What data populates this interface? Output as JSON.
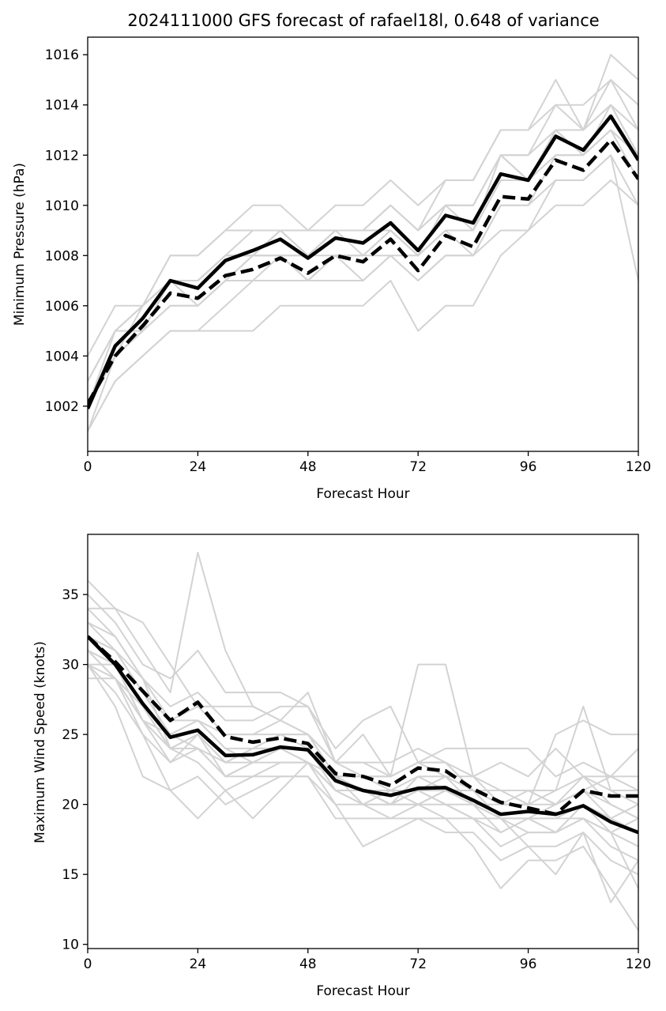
{
  "title": "2024111000 GFS forecast of rafael18l, 0.648 of variance",
  "chart_data": [
    {
      "type": "line",
      "xlabel": "Forecast Hour",
      "ylabel": "Minimum Pressure (hPa)",
      "xlim": [
        0,
        120
      ],
      "ylim": [
        1000.2,
        1016.7
      ],
      "xticks": [
        0,
        24,
        48,
        72,
        96,
        120
      ],
      "yticks": [
        1002,
        1004,
        1006,
        1008,
        1010,
        1012,
        1014,
        1016
      ],
      "x": [
        0,
        6,
        12,
        18,
        24,
        30,
        36,
        42,
        48,
        54,
        60,
        66,
        72,
        78,
        84,
        90,
        96,
        102,
        108,
        114,
        120
      ],
      "series": [
        {
          "style": "solid",
          "values": [
            1001.9,
            1004.4,
            1005.5,
            1007.0,
            1006.7,
            1007.8,
            1008.2,
            1008.65,
            1007.9,
            1008.7,
            1008.5,
            1009.3,
            1008.2,
            1009.6,
            1009.3,
            1011.25,
            1011.0,
            1012.75,
            1012.2,
            1013.55,
            1011.8
          ]
        },
        {
          "style": "dashed",
          "values": [
            1002.1,
            1004.0,
            1005.2,
            1006.5,
            1006.3,
            1007.2,
            1007.45,
            1007.9,
            1007.3,
            1008.0,
            1007.75,
            1008.65,
            1007.4,
            1008.8,
            1008.35,
            1010.35,
            1010.25,
            1011.8,
            1011.4,
            1012.6,
            1011.05
          ]
        }
      ],
      "members": [
        [
          1002,
          1004,
          1006,
          1007,
          1007,
          1008,
          1008,
          1009,
          1008,
          1009,
          1009,
          1009,
          1008,
          1010,
          1010,
          1012,
          1011,
          1013,
          1013,
          1014,
          1012
        ],
        [
          1001,
          1004,
          1005,
          1007,
          1007,
          1008,
          1009,
          1009,
          1008,
          1009,
          1008,
          1009,
          1008,
          1009,
          1009,
          1011,
          1011,
          1013,
          1012,
          1013,
          1012
        ],
        [
          1003,
          1005,
          1006,
          1007,
          1007,
          1008,
          1008,
          1009,
          1008,
          1009,
          1009,
          1010,
          1009,
          1010,
          1010,
          1012,
          1012,
          1013,
          1013,
          1014,
          1013
        ],
        [
          1001,
          1003,
          1004,
          1005,
          1005,
          1006,
          1007,
          1007,
          1007,
          1007,
          1007,
          1008,
          1007,
          1008,
          1008,
          1010,
          1010,
          1012,
          1012,
          1013,
          1012
        ],
        [
          1004,
          1006,
          1006,
          1008,
          1008,
          1009,
          1010,
          1010,
          1009,
          1010,
          1010,
          1011,
          1010,
          1011,
          1011,
          1013,
          1013,
          1015,
          1013,
          1016,
          1015
        ],
        [
          1003,
          1005,
          1005,
          1006,
          1006,
          1007,
          1008,
          1008,
          1007,
          1008,
          1008,
          1009,
          1008,
          1009,
          1009,
          1011,
          1011,
          1012,
          1012,
          1013,
          1011
        ],
        [
          1001,
          1003,
          1004,
          1005,
          1005,
          1005,
          1005,
          1006,
          1006,
          1006,
          1006,
          1007,
          1005,
          1006,
          1006,
          1008,
          1009,
          1010,
          1010,
          1011,
          1010
        ],
        [
          1002,
          1004,
          1005,
          1006,
          1006,
          1007,
          1007,
          1008,
          1007,
          1008,
          1008,
          1008,
          1007,
          1008,
          1008,
          1009,
          1009,
          1011,
          1011,
          1012,
          1007
        ],
        [
          1002,
          1005,
          1006,
          1008,
          1008,
          1009,
          1009,
          1009,
          1009,
          1009,
          1009,
          1010,
          1009,
          1010,
          1010,
          1012,
          1012,
          1014,
          1013,
          1015,
          1014
        ],
        [
          1002,
          1004,
          1005,
          1007,
          1006,
          1007,
          1008,
          1008,
          1008,
          1008,
          1007,
          1008,
          1008,
          1009,
          1008,
          1010,
          1010,
          1011,
          1011,
          1012,
          1010
        ],
        [
          1003,
          1005,
          1006,
          1007,
          1007,
          1008,
          1008,
          1009,
          1008,
          1009,
          1009,
          1010,
          1009,
          1011,
          1011,
          1013,
          1013,
          1014,
          1014,
          1015,
          1013
        ],
        [
          1002,
          1004,
          1005,
          1007,
          1007,
          1008,
          1008,
          1008,
          1008,
          1009,
          1009,
          1009,
          1008,
          1010,
          1009,
          1012,
          1011,
          1013,
          1012,
          1014,
          1012
        ]
      ]
    },
    {
      "type": "line",
      "xlabel": "Forecast Hour",
      "ylabel": "Maximum Wind Speed (knots)",
      "xlim": [
        0,
        120
      ],
      "ylim": [
        9.7,
        39.3
      ],
      "xticks": [
        0,
        24,
        48,
        72,
        96,
        120
      ],
      "yticks": [
        10,
        15,
        20,
        25,
        30,
        35
      ],
      "x": [
        0,
        6,
        12,
        18,
        24,
        30,
        36,
        42,
        48,
        54,
        60,
        66,
        72,
        78,
        84,
        90,
        96,
        102,
        108,
        114,
        120
      ],
      "series": [
        {
          "style": "solid",
          "values": [
            32.0,
            30.0,
            27.2,
            24.8,
            25.3,
            23.5,
            23.55,
            24.1,
            23.9,
            21.7,
            21.0,
            20.65,
            21.15,
            21.2,
            20.3,
            19.3,
            19.5,
            19.3,
            19.9,
            18.75,
            18.0
          ]
        },
        {
          "style": "dashed",
          "values": [
            32.0,
            30.2,
            28.1,
            26.0,
            27.3,
            24.85,
            24.45,
            24.75,
            24.35,
            22.2,
            22.0,
            21.35,
            22.6,
            22.4,
            21.1,
            20.15,
            19.75,
            19.3,
            21.0,
            20.6,
            20.6
          ]
        }
      ],
      "members": [
        [
          36,
          34,
          31,
          28,
          38,
          31,
          27,
          26,
          25,
          22,
          21,
          21,
          21,
          20,
          19,
          18,
          19,
          20,
          21,
          20,
          19
        ],
        [
          35,
          33,
          30,
          29,
          31,
          28,
          28,
          28,
          27,
          24,
          26,
          27,
          23,
          24,
          24,
          24,
          24,
          22,
          23,
          22,
          21
        ],
        [
          34,
          34,
          33,
          30,
          27,
          27,
          27,
          26,
          28,
          23,
          25,
          22,
          30,
          30,
          22,
          20,
          20,
          25,
          26,
          25,
          25
        ],
        [
          33,
          32,
          29,
          27,
          28,
          26,
          26,
          27,
          27,
          23,
          22,
          21,
          22,
          22,
          22,
          23,
          22,
          24,
          22,
          22,
          24
        ],
        [
          32,
          30,
          26,
          23,
          25,
          23,
          24,
          24,
          24,
          21,
          21,
          20,
          21,
          22,
          20,
          19,
          19,
          18,
          20,
          18,
          17
        ],
        [
          31,
          29,
          26,
          25,
          26,
          24,
          23,
          24,
          24,
          22,
          21,
          20,
          22,
          21,
          20,
          20,
          21,
          20,
          21,
          19,
          20
        ],
        [
          30,
          28,
          25,
          23,
          24,
          22,
          22,
          23,
          23,
          21,
          20,
          20,
          20,
          21,
          21,
          19,
          18,
          18,
          19,
          17,
          16
        ],
        [
          30,
          27,
          22,
          21,
          22,
          20,
          21,
          22,
          22,
          19,
          19,
          19,
          19,
          18,
          18,
          16,
          17,
          15,
          18,
          16,
          15
        ],
        [
          29,
          29,
          25,
          21,
          19,
          21,
          19,
          21,
          23,
          20,
          17,
          18,
          19,
          19,
          17,
          14,
          16,
          16,
          17,
          14,
          11
        ],
        [
          32,
          31,
          29,
          24,
          25,
          23,
          24,
          25,
          25,
          22,
          22,
          22,
          23,
          23,
          22,
          21,
          21,
          21,
          27,
          21,
          21
        ],
        [
          33,
          31,
          28,
          26,
          26,
          25,
          25,
          26,
          25,
          23,
          23,
          23,
          24,
          23,
          21,
          21,
          21,
          20,
          21,
          22,
          22
        ],
        [
          31,
          30,
          27,
          24,
          25,
          23,
          24,
          24,
          24,
          21,
          21,
          21,
          21,
          20,
          19,
          17,
          18,
          18,
          19,
          18,
          14
        ],
        [
          32,
          31,
          28,
          25,
          24,
          22,
          23,
          23,
          23,
          22,
          20,
          20,
          20,
          20,
          20,
          19,
          19,
          18,
          20,
          19,
          18
        ],
        [
          30,
          29,
          26,
          24,
          23,
          21,
          22,
          22,
          22,
          20,
          20,
          19,
          20,
          19,
          19,
          19,
          17,
          17,
          18,
          13,
          16
        ],
        [
          31,
          30,
          27,
          25,
          26,
          24,
          24,
          25,
          24,
          22,
          22,
          22,
          23,
          22,
          21,
          20,
          20,
          20,
          22,
          20,
          19
        ],
        [
          34,
          32,
          29,
          26,
          27,
          25,
          25,
          25,
          25,
          23,
          23,
          22,
          23,
          23,
          21,
          21,
          20,
          21,
          22,
          21,
          20
        ],
        [
          31,
          29,
          27,
          24,
          24,
          23,
          23,
          24,
          23,
          21,
          21,
          20,
          21,
          21,
          20,
          19,
          19,
          19,
          20,
          19,
          18
        ],
        [
          30,
          30,
          26,
          24,
          25,
          22,
          23,
          24,
          23,
          21,
          20,
          21,
          20,
          21,
          20,
          18,
          19,
          19,
          19,
          18,
          19
        ]
      ]
    }
  ]
}
